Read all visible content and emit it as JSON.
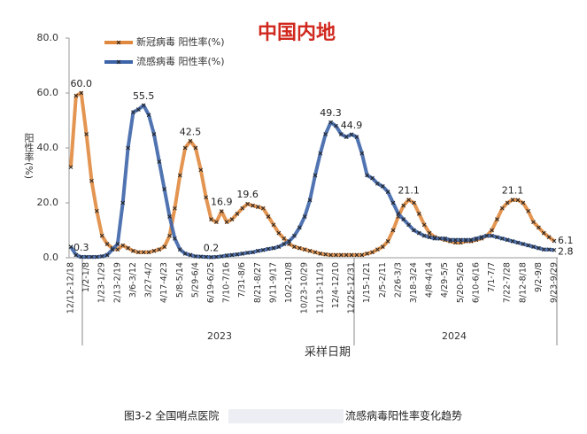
{
  "chart_data": {
    "type": "line",
    "title": "中国内地",
    "y_label": "阳性率(%)",
    "x_label": "采样日期",
    "years": [
      "2023",
      "2024"
    ],
    "caption": [
      "图3-2 全国哨点医院",
      "流感病毒阳性率变化趋势"
    ],
    "categories": [
      "12/12-12/18",
      null,
      null,
      "1/2-1/8",
      null,
      null,
      "1/23-1/29",
      null,
      null,
      "2/13-2/19",
      null,
      null,
      "3/6-3/12",
      null,
      null,
      "3/27-4/2",
      null,
      null,
      "4/17-4/23",
      null,
      null,
      "5/8-5/14",
      null,
      null,
      "5/29-6/4",
      null,
      null,
      "6/19-6/25",
      null,
      null,
      "7/10-7/16",
      null,
      null,
      "7/31-8/6",
      null,
      null,
      "8/21-8/27",
      null,
      null,
      "9/11-9/17",
      null,
      null,
      "10/2-10/8",
      null,
      null,
      "10/23-10/29",
      null,
      null,
      "11/13-11/19",
      null,
      null,
      "12/4-12/10",
      null,
      null,
      "12/25-12/31",
      null,
      null,
      "1/15-1/21",
      null,
      null,
      "2/5-2/11",
      null,
      null,
      "2/26-3/3",
      null,
      null,
      "3/18-3/24",
      null,
      null,
      "4/8-4/14",
      null,
      null,
      "4/29-5/5",
      null,
      null,
      "5/20-5/26",
      null,
      null,
      "6/10-6/16",
      null,
      null,
      "7/1-7/7",
      null,
      null,
      "7/22-7/28",
      null,
      null,
      "8/12-8/18",
      null,
      null,
      "9/2-9/8",
      null,
      null,
      "9/23-9/29"
    ],
    "series": [
      {
        "name": "新冠病毒 阳性率(%)",
        "color": "#e0893e",
        "values": [
          33,
          59,
          60,
          45,
          28,
          17,
          8,
          5,
          3.5,
          3,
          4.5,
          3.5,
          2.5,
          2,
          2,
          2,
          2.5,
          3,
          4,
          8,
          18,
          30,
          40,
          42.5,
          40,
          32,
          22,
          14,
          13,
          16.9,
          13,
          14,
          16,
          18,
          19.6,
          19,
          18.5,
          18,
          15,
          12,
          9,
          7,
          5,
          4,
          3.5,
          3,
          2.5,
          2,
          1.5,
          1.2,
          1,
          1,
          1,
          1,
          1,
          1,
          1,
          1.5,
          2,
          3,
          4,
          6,
          10,
          15,
          19,
          21.1,
          20,
          16,
          12,
          9,
          7.5,
          7,
          6.5,
          6,
          5.5,
          5.5,
          6,
          6,
          6.5,
          7,
          8,
          10,
          14,
          18,
          20,
          21.1,
          21,
          20,
          17,
          13,
          11,
          9,
          7.5,
          6.1
        ],
        "value_labels": [
          null,
          null,
          "60.0",
          null,
          null,
          null,
          null,
          null,
          null,
          null,
          null,
          null,
          null,
          null,
          null,
          null,
          null,
          null,
          null,
          null,
          null,
          null,
          null,
          "42.5",
          null,
          null,
          null,
          null,
          null,
          "16.9",
          null,
          null,
          null,
          null,
          "19.6",
          null,
          null,
          null,
          null,
          null,
          null,
          null,
          null,
          null,
          null,
          null,
          null,
          null,
          null,
          null,
          null,
          null,
          null,
          null,
          null,
          null,
          null,
          null,
          null,
          null,
          null,
          null,
          null,
          null,
          null,
          "21.1",
          null,
          null,
          null,
          null,
          null,
          null,
          null,
          null,
          null,
          null,
          null,
          null,
          null,
          null,
          null,
          null,
          null,
          null,
          null,
          "21.1",
          null,
          null,
          null,
          null,
          null,
          null,
          null,
          "6.1"
        ]
      },
      {
        "name": "流感病毒 阳性率(%)",
        "color": "#3d64a8",
        "values": [
          4,
          1,
          0.3,
          0.3,
          0.3,
          0.3,
          0.5,
          1,
          3,
          5,
          20,
          40,
          53,
          54,
          55.5,
          52,
          45,
          35,
          25,
          15,
          7,
          3,
          1.5,
          1,
          0.5,
          0.4,
          0.3,
          0.2,
          0.3,
          0.5,
          0.8,
          1,
          1.2,
          1.5,
          1.8,
          2,
          2.5,
          2.8,
          3.2,
          3.5,
          4,
          5,
          6,
          8,
          11,
          15,
          21,
          30,
          38,
          45,
          49.3,
          48,
          45,
          44,
          44.9,
          44,
          38,
          30,
          29,
          27,
          26,
          24,
          20,
          16,
          14,
          12,
          10,
          9,
          8,
          7.5,
          7,
          7,
          7,
          6.5,
          6.5,
          6.5,
          6.5,
          6.5,
          7,
          7.5,
          8,
          8,
          7.5,
          7,
          6.5,
          6,
          5.5,
          5,
          4.5,
          4,
          3.5,
          3,
          3,
          2.8
        ],
        "value_labels": [
          null,
          null,
          "0.3",
          null,
          null,
          null,
          null,
          null,
          null,
          null,
          null,
          null,
          null,
          null,
          "55.5",
          null,
          null,
          null,
          null,
          null,
          null,
          null,
          null,
          null,
          null,
          null,
          null,
          "0.2",
          null,
          null,
          null,
          null,
          null,
          null,
          null,
          null,
          null,
          null,
          null,
          null,
          null,
          null,
          null,
          null,
          null,
          null,
          null,
          null,
          null,
          null,
          "49.3",
          null,
          null,
          null,
          "44.9",
          null,
          null,
          null,
          null,
          null,
          null,
          null,
          null,
          null,
          null,
          null,
          null,
          null,
          null,
          null,
          null,
          null,
          null,
          null,
          null,
          null,
          null,
          null,
          null,
          null,
          null,
          null,
          null,
          null,
          null,
          null,
          null,
          null,
          null,
          null,
          null,
          null,
          null,
          "2.8"
        ]
      }
    ],
    "ylim": [
      0,
      80
    ],
    "yticks": [
      {
        "value": 0,
        "label": "0.0"
      },
      {
        "value": 20,
        "label": "20.0"
      },
      {
        "value": 40,
        "label": "40.0"
      },
      {
        "value": 60,
        "label": "60.0"
      },
      {
        "value": 80,
        "label": "80.0"
      }
    ],
    "grid": false,
    "legend": "upper left"
  }
}
